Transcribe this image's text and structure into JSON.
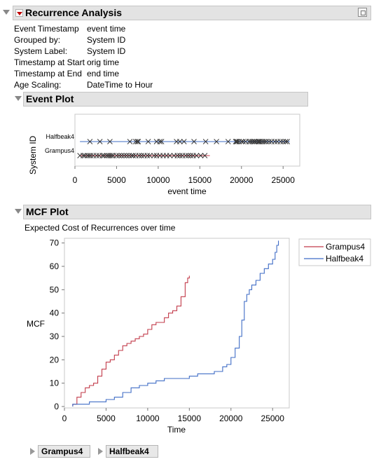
{
  "report": {
    "title": "Recurrence Analysis",
    "info": [
      {
        "key": "Event Timestamp",
        "value": "event time"
      },
      {
        "key": "Grouped by:",
        "value": "System ID"
      },
      {
        "key": "System Label:",
        "value": "System ID"
      },
      {
        "key": "Timestamp at Start",
        "value": "orig time"
      },
      {
        "key": "Timestamp at End",
        "value": "end time"
      },
      {
        "key": "Age Scaling:",
        "value": "DateTime to Hour"
      }
    ]
  },
  "event_plot": {
    "title": "Event Plot",
    "ylabel": "System ID",
    "xlabel": "event time",
    "x_ticks": [
      "0",
      "5000",
      "10000",
      "15000",
      "20000",
      "25000"
    ],
    "systems": [
      "Halfbeak4",
      "Grampus4"
    ]
  },
  "mcf_plot": {
    "title": "MCF Plot",
    "subtitle": "Expected Cost of Recurrences over time",
    "ylabel": "MCF",
    "xlabel": "Time",
    "x_ticks": [
      "0",
      "5000",
      "10000",
      "15000",
      "20000",
      "25000"
    ],
    "y_ticks": [
      "0",
      "10",
      "20",
      "30",
      "40",
      "50",
      "60",
      "70"
    ],
    "legend": [
      "Grampus4",
      "Halfbeak4"
    ]
  },
  "outline_buttons": [
    "Grampus4",
    "Halfbeak4"
  ],
  "colors": {
    "grampus": "#c23b4a",
    "halfbeak": "#3f6cc6",
    "event_line_grampus": "#c23b4a",
    "event_line_halfbeak": "#3f6cc6"
  },
  "chart_data": [
    {
      "type": "scatter",
      "title": "Event Plot",
      "xlabel": "event time",
      "ylabel": "System ID",
      "xlim": [
        0,
        27000
      ],
      "categories": [
        "Halfbeak4",
        "Grampus4"
      ],
      "series": [
        {
          "name": "Halfbeak4",
          "range": [
            600,
            25800
          ],
          "values": [
            1800,
            3000,
            4200,
            6600,
            7300,
            7500,
            7600,
            8800,
            9800,
            10200,
            10400,
            12200,
            12600,
            13100,
            14300,
            15700,
            17000,
            18400,
            19300,
            19400,
            19500,
            19700,
            20000,
            20200,
            20500,
            20900,
            21100,
            21300,
            21500,
            21600,
            21800,
            22000,
            22100,
            22200,
            22400,
            22600,
            22800,
            23000,
            23300,
            23600,
            24000,
            24300,
            24700,
            25000,
            25300,
            25500
          ]
        },
        {
          "name": "Grampus4",
          "range": [
            600,
            16200
          ],
          "values": [
            600,
            1000,
            1200,
            1500,
            1700,
            1900,
            2200,
            2600,
            2900,
            3300,
            3500,
            3800,
            4000,
            4200,
            4400,
            4600,
            5000,
            5300,
            5600,
            5900,
            6200,
            6500,
            6800,
            7000,
            7300,
            7700,
            8000,
            8300,
            8700,
            9000,
            9500,
            9800,
            10200,
            10600,
            11000,
            11400,
            11900,
            12300,
            12600,
            12900,
            13300,
            13600,
            13900,
            14200,
            14600,
            15100,
            15600
          ]
        }
      ]
    },
    {
      "type": "line",
      "title": "MCF Plot",
      "subtitle": "Expected Cost of Recurrences over time",
      "xlabel": "Time",
      "ylabel": "MCF",
      "xlim": [
        0,
        27000
      ],
      "ylim": [
        0,
        72
      ],
      "legend_position": "top-right",
      "series": [
        {
          "name": "Grampus4",
          "x": [
            1000,
            1500,
            2000,
            2500,
            3000,
            3500,
            4000,
            4500,
            5000,
            5500,
            6000,
            6500,
            7000,
            7500,
            8000,
            8500,
            9000,
            9500,
            10000,
            10500,
            11000,
            11500,
            12000,
            12500,
            13000,
            13500,
            14000,
            14500,
            14800,
            15000
          ],
          "y": [
            1,
            4,
            6,
            8,
            9,
            10,
            13,
            16,
            19,
            20,
            22,
            24,
            26,
            27,
            28,
            29,
            30,
            31,
            33,
            35,
            36,
            36,
            38,
            40,
            41,
            43,
            47,
            53,
            55,
            56
          ]
        },
        {
          "name": "Halfbeak4",
          "x": [
            1000,
            3000,
            5000,
            6000,
            7000,
            8000,
            9000,
            10000,
            11000,
            12000,
            13000,
            14000,
            15000,
            16000,
            17000,
            18000,
            19000,
            19500,
            20000,
            20500,
            21000,
            21300,
            21600,
            21900,
            22200,
            22500,
            23000,
            23500,
            24000,
            24500,
            25000,
            25300,
            25500,
            25700
          ],
          "y": [
            1,
            2,
            3,
            4,
            6,
            8,
            9,
            10,
            11,
            12,
            12,
            12,
            13,
            14,
            14,
            15,
            17,
            18,
            21,
            25,
            30,
            37,
            45,
            48,
            50,
            52,
            54,
            57,
            59,
            61,
            63,
            66,
            69,
            71
          ]
        }
      ]
    }
  ]
}
